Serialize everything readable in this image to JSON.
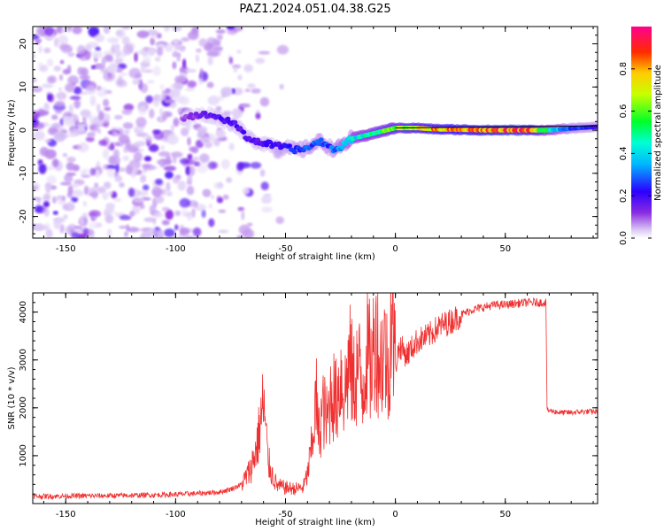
{
  "figure": {
    "title": "PAZ1.2024.051.04.38.G25"
  },
  "chart_data": [
    {
      "type": "heatmap",
      "xlabel": "Height of straight line (km)",
      "ylabel": "Frequency (Hz)",
      "xlim": [
        -165,
        92
      ],
      "ylim": [
        -25,
        24
      ],
      "xticks": [
        -150,
        -100,
        -50,
        0,
        50
      ],
      "yticks": [
        -20,
        -10,
        0,
        10,
        20
      ],
      "colorbar": {
        "label": "Normalized spectral amplitude",
        "range": [
          0,
          1
        ],
        "ticks": [
          0.0,
          0.2,
          0.4,
          0.6,
          0.8
        ],
        "colormap": "gist_rainbow (purple-low, red-high)"
      },
      "ridge_frequency": {
        "x": [
          -97,
          -90,
          -84,
          -78,
          -72,
          -68,
          -64,
          -60,
          -55,
          -50,
          -46,
          -42,
          -38,
          -34,
          -30,
          -27,
          -24,
          -20,
          -16,
          -12,
          -8,
          -4,
          0,
          5,
          10,
          15,
          20,
          30,
          40,
          50,
          60,
          70,
          80,
          92
        ],
        "y": [
          3,
          3.5,
          3.5,
          2.5,
          1,
          -1.5,
          -2.5,
          -3,
          -3.5,
          -4,
          -4.5,
          -4.5,
          -3.5,
          -2.5,
          -4,
          -4.5,
          -3.5,
          -2,
          -1.5,
          -1,
          -0.5,
          0,
          0.5,
          0.5,
          0.5,
          0.3,
          0.2,
          0.1,
          0,
          0,
          0,
          0,
          0.4,
          0.8
        ]
      },
      "reference_line": {
        "x": [
          0,
          92
        ],
        "y": [
          0.5,
          1
        ]
      },
      "ridge_amplitude": {
        "x": [
          -97,
          -90,
          -80,
          -70,
          -60,
          -50,
          -40,
          -30,
          -20,
          -10,
          0,
          10,
          20,
          30,
          40,
          50,
          60,
          70,
          80,
          92
        ],
        "y": [
          0.1,
          0.15,
          0.2,
          0.2,
          0.2,
          0.25,
          0.3,
          0.3,
          0.45,
          0.55,
          0.7,
          0.8,
          0.85,
          0.88,
          0.9,
          0.95,
          0.95,
          0.5,
          0.3,
          0.25
        ]
      }
    },
    {
      "type": "line",
      "xlabel": "Height of straight line (km)",
      "ylabel": "SNR (10 * v/v)",
      "xlim": [
        -165,
        92
      ],
      "ylim": [
        0,
        4400
      ],
      "xticks": [
        -150,
        -100,
        -50,
        0,
        50
      ],
      "yticks": [
        1000,
        2000,
        3000,
        4000
      ],
      "color": "#f03030",
      "series": [
        {
          "x": [
            -165,
            -140,
            -120,
            -100,
            -90,
            -80,
            -75,
            -70,
            -66,
            -63,
            -61,
            -60,
            -58,
            -56,
            -54,
            -50,
            -46,
            -42,
            -40,
            -38,
            -36,
            -35,
            -33,
            -31,
            -29,
            -27,
            -25,
            -23,
            -21,
            -19,
            -17,
            -15,
            -13,
            -11,
            -9,
            -7,
            -5,
            -3,
            -2,
            0,
            2,
            5,
            10,
            15,
            20,
            25,
            30,
            35,
            40,
            45,
            50,
            55,
            60,
            65,
            68.5,
            69,
            75,
            80,
            85,
            92
          ],
          "y": [
            150,
            160,
            170,
            190,
            210,
            240,
            300,
            400,
            700,
            1200,
            1800,
            2100,
            900,
            600,
            380,
            330,
            310,
            330,
            600,
            1200,
            2200,
            1400,
            2000,
            1700,
            2400,
            2100,
            2700,
            2300,
            3000,
            2500,
            2900,
            2400,
            3200,
            2800,
            3600,
            2900,
            3300,
            2600,
            4200,
            2900,
            3300,
            3100,
            3400,
            3500,
            3700,
            3800,
            3950,
            4050,
            4100,
            4150,
            4150,
            4180,
            4200,
            4200,
            4200,
            1950,
            1900,
            1900,
            1920,
            1920
          ]
        }
      ]
    }
  ]
}
